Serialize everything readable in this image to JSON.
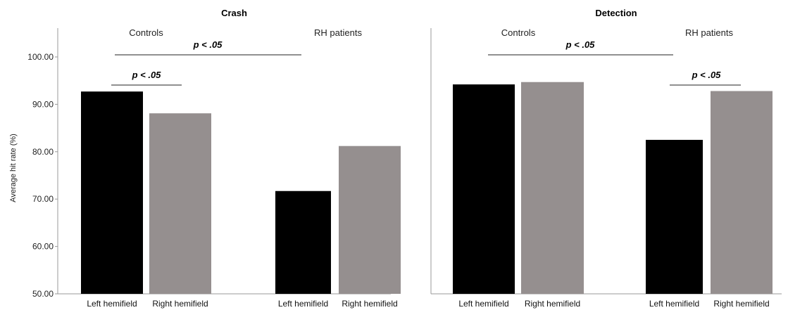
{
  "colors": {
    "left_hemifield": "#000000",
    "right_hemifield": "#958f8f"
  },
  "chart_data": [
    {
      "type": "bar",
      "title": "Crash",
      "ylabel": "Average hit rate (%)",
      "ylim": [
        50,
        100
      ],
      "yticks": [
        "50.00",
        "60.00",
        "70.00",
        "80.00",
        "90.00",
        "100.00"
      ],
      "groups": [
        "Controls",
        "RH patients"
      ],
      "categories": [
        "Left hemifield",
        "Right hemifield"
      ],
      "series": [
        {
          "values": [
            92.7,
            71.7
          ]
        },
        {
          "values": [
            88.1,
            81.2
          ]
        }
      ],
      "annotations": [
        {
          "text": "p < .05",
          "from": "Controls · Left hemifield",
          "to": "Controls · Right hemifield"
        },
        {
          "text": "p < .05",
          "from": "Controls",
          "to": "RH patients"
        }
      ],
      "grid": false
    },
    {
      "type": "bar",
      "title": "Detection",
      "ylim": [
        50,
        100
      ],
      "groups": [
        "Controls",
        "RH patients"
      ],
      "categories": [
        "Left hemifield",
        "Right hemifield"
      ],
      "series": [
        {
          "values": [
            94.2,
            82.5
          ]
        },
        {
          "values": [
            94.7,
            92.8
          ]
        }
      ],
      "annotations": [
        {
          "text": "p < .05",
          "from": "Controls",
          "to": "RH patients"
        },
        {
          "text": "p < .05",
          "from": "RH patients · Left hemifield",
          "to": "RH patients · Right hemifield"
        }
      ],
      "grid": false
    }
  ]
}
